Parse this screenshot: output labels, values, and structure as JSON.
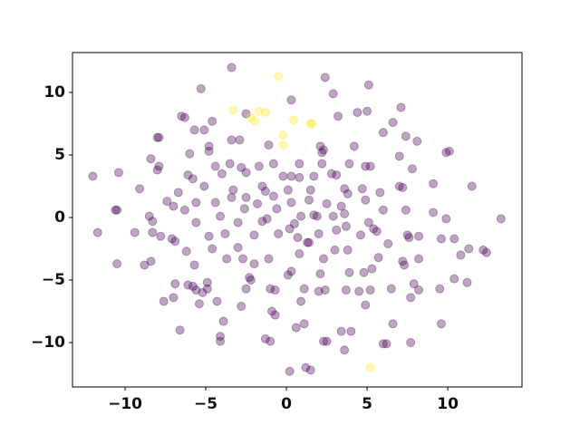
{
  "chart_data": {
    "type": "scatter",
    "xlim": [
      -13.26,
      14.6
    ],
    "ylim": [
      -13.55,
      13.19
    ],
    "xticks": [
      {
        "value": -10,
        "label": "−10"
      },
      {
        "value": -5,
        "label": "−5"
      },
      0,
      5,
      10
    ],
    "yticks": [
      {
        "value": -10,
        "label": "−10"
      },
      {
        "value": -5,
        "label": "−5"
      },
      0,
      5,
      10
    ],
    "series": [
      {
        "color": "#440154",
        "x": [
          -3.4,
          2.4,
          5.1,
          -5.3,
          0.3,
          2.9,
          -6.5,
          -6.3,
          -4.6,
          -2.5,
          4.4,
          3.2,
          5.0,
          7.1,
          6.6,
          6.0,
          -5.7,
          -5.1,
          -8.0,
          -7.9,
          8.1,
          7.4,
          -3.4,
          -2.9,
          -1.1,
          2.1,
          2.3,
          4.2,
          9.9,
          10.1,
          -4.8,
          -4.8,
          7.0,
          -8.4,
          -6.0,
          2.2,
          4.9,
          5.2,
          7.8,
          -7.9,
          -8.0,
          -10.4,
          -12.0,
          -6.1,
          -5.8,
          -4.4,
          -3.5,
          -2.8,
          -1.7,
          -0.8,
          0.8,
          1.7,
          2.8,
          3.1,
          3.9,
          2.2,
          -0.2,
          0.3,
          0.8,
          -2.5,
          -4.0,
          9.1,
          7.0,
          7.2,
          11.5,
          -9.1,
          -5.1,
          -3.3,
          -1.5,
          -1.3,
          0.1,
          1.5,
          3.6,
          3.8,
          4.7,
          5.8,
          -6.7,
          -7.4,
          -7.0,
          -5.6,
          -4.4,
          -3.4,
          -2.5,
          -0.8,
          0.3,
          1.4,
          2.5,
          3.4,
          4.9,
          -10.6,
          -10.5,
          -8.5,
          -6.3,
          -4.1,
          -2.6,
          -1.8,
          -1.5,
          -1.2,
          -0.6,
          0.9,
          1.7,
          1.9,
          2.9,
          3.6,
          6.0,
          7.4,
          9.1,
          9.9,
          13.3,
          -8.3,
          -5.6,
          -3.0,
          0.5,
          0.2,
          3.7,
          5.1,
          5.4,
          -11.7,
          -9.4,
          -8.3,
          -7.8,
          -7.1,
          -6.9,
          -4.8,
          -3.8,
          -2.0,
          -0.5,
          0.7,
          2.0,
          3.1,
          4.6,
          5.6,
          7.5,
          7.6,
          8.2,
          9.6,
          10.4,
          12.2,
          12.4,
          11.3,
          10.8,
          6.3,
          1.3,
          1.4,
          3.0,
          3.8,
          -3.0,
          -4.6,
          -10.5,
          -8.8,
          -8.4,
          -6.2,
          -3.7,
          -2.7,
          -2.0,
          -1.1,
          0.8,
          2.3,
          5.7,
          7.2,
          7.3,
          8.2,
          -5.7,
          5.3,
          4.8,
          3.9,
          0.3,
          0.1,
          2.1,
          -2.3,
          -2.2,
          10.4,
          11.2,
          7.9,
          -6.9,
          -6.1,
          -5.8,
          -5.6,
          -5.2,
          -4.9,
          -4.9,
          -7.6,
          -7.0,
          -2.5,
          -0.7,
          -1.0,
          1.1,
          2.0,
          2.4,
          3.7,
          4.5,
          5.2,
          6.5,
          8.2,
          9.5,
          7.7,
          0.9,
          -2.8,
          -4.3,
          -5.4,
          4.9,
          -0.9,
          -0.7,
          6.6,
          9.6,
          -3.9,
          1.1,
          -6.6,
          0.6,
          3.4,
          4.0,
          -4.1,
          -4.1,
          -1.3,
          -1.0,
          2.3,
          2.5,
          6.0,
          6.2,
          7.7,
          3.6,
          0.2,
          1.2,
          1.5
        ],
        "values": [
          12.0,
          11.2,
          10.6,
          10.3,
          9.4,
          9.9,
          8.1,
          8.0,
          7.7,
          8.3,
          8.4,
          8.1,
          8.5,
          8.8,
          7.6,
          6.8,
          7.0,
          7.0,
          6.4,
          6.4,
          6.1,
          6.5,
          6.2,
          6.2,
          5.8,
          5.7,
          5.4,
          5.7,
          5.2,
          5.3,
          5.7,
          5.3,
          4.9,
          4.7,
          5.1,
          5.2,
          4.1,
          4.1,
          3.9,
          4.1,
          3.8,
          3.6,
          3.3,
          3.4,
          3.1,
          4.1,
          4.3,
          4.0,
          4.1,
          4.3,
          4.3,
          3.3,
          3.5,
          3.4,
          4.3,
          4.3,
          3.3,
          3.3,
          3.2,
          3.6,
          3.5,
          2.7,
          2.5,
          2.4,
          2.5,
          2.3,
          2.5,
          2.2,
          2.5,
          2.1,
          2.2,
          2.2,
          2.3,
          1.9,
          2.3,
          2.0,
          2.0,
          1.3,
          0.9,
          1.2,
          1.2,
          1.6,
          1.6,
          1.7,
          1.2,
          1.4,
          1.1,
          0.9,
          1.4,
          0.6,
          0.6,
          0.1,
          0.6,
          0.1,
          0.7,
          1.1,
          -0.3,
          -0.1,
          0.7,
          0.1,
          0.2,
          0.1,
          0.1,
          0.3,
          0.6,
          0.6,
          0.4,
          -0.1,
          -0.1,
          -0.3,
          -0.4,
          -0.4,
          -0.5,
          -0.9,
          -0.7,
          -0.4,
          -0.9,
          -1.2,
          -1.2,
          -1.2,
          -1.5,
          -1.7,
          -1.9,
          -1.5,
          -1.3,
          -1.4,
          -1.3,
          -1.6,
          -1.3,
          -1.0,
          -1.4,
          -1.1,
          -1.4,
          -1.6,
          -1.5,
          -1.7,
          -1.7,
          -2.6,
          -2.8,
          -2.5,
          -3.0,
          -2.1,
          -2.0,
          -2.0,
          -2.6,
          -2.6,
          -2.4,
          -2.5,
          -3.7,
          -3.8,
          -3.5,
          -2.7,
          -3.3,
          -3.3,
          -3.7,
          -3.3,
          -2.9,
          -3.3,
          -3.2,
          -3.5,
          -3.8,
          -3.3,
          -3.8,
          -4.1,
          -4.4,
          -4.4,
          -4.3,
          -4.6,
          -4.5,
          -4.8,
          -5.0,
          -4.9,
          -5.2,
          -5.3,
          -5.3,
          -5.4,
          -5.5,
          -5.8,
          -6.0,
          -5.7,
          -5.2,
          -6.7,
          -6.4,
          -5.7,
          -5.8,
          -5.7,
          -5.7,
          -5.9,
          -5.8,
          -5.8,
          -5.9,
          -5.8,
          -5.7,
          -5.8,
          -5.7,
          -6.4,
          -6.7,
          -7.1,
          -6.7,
          -6.9,
          -7.0,
          -7.5,
          -7.8,
          -8.5,
          -8.5,
          -8.3,
          -8.5,
          -9.0,
          -8.8,
          -9.1,
          -9.1,
          -9.5,
          -9.9,
          -9.7,
          -9.9,
          -9.9,
          -9.9,
          -10.1,
          -10.1,
          -10.0,
          -10.6,
          -12.3,
          -12.0,
          -12.2
        ]
      },
      {
        "color": "#fde725",
        "x": [
          -0.5,
          -3.3,
          -1.7,
          -1.3,
          -2.2,
          -1.97,
          0.45,
          1.5,
          1.6,
          -0.2,
          -0.2,
          5.2
        ],
        "values": [
          11.3,
          8.6,
          8.5,
          8.4,
          8.0,
          7.7,
          7.8,
          7.5,
          7.5,
          6.6,
          5.8,
          -12.0
        ]
      }
    ]
  }
}
